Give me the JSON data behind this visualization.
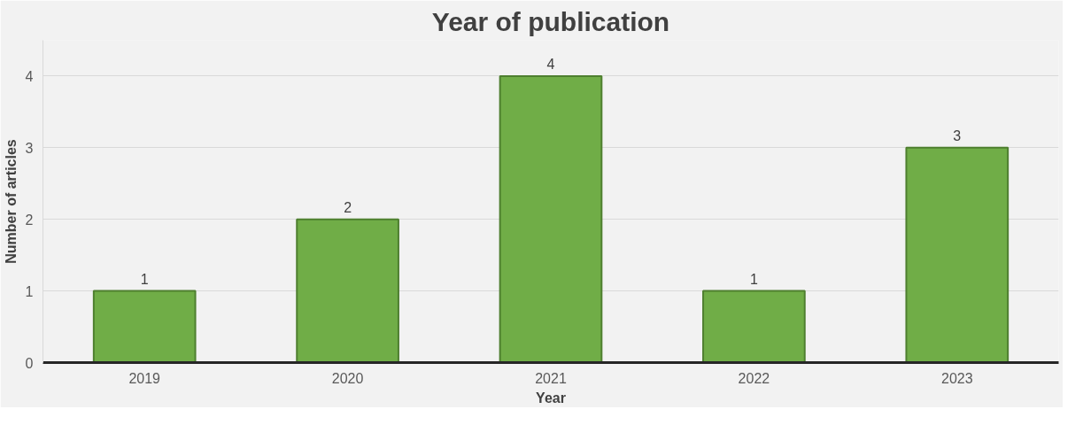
{
  "chart_data": {
    "type": "bar",
    "title": "Year of publication",
    "xlabel": "Year",
    "ylabel": "Number of articles",
    "categories": [
      "2019",
      "2020",
      "2021",
      "2022",
      "2023"
    ],
    "values": [
      1,
      2,
      4,
      1,
      3
    ],
    "color": "#70ad47",
    "ylim": [
      0,
      4.5
    ],
    "yticks": [
      0,
      1,
      2,
      3,
      4
    ],
    "grid": "y",
    "data_labels": true
  }
}
